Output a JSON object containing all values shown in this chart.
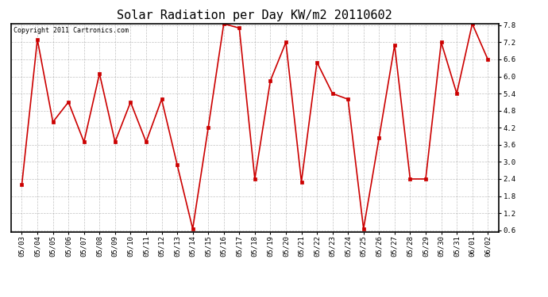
{
  "title": "Solar Radiation per Day KW/m2 20110602",
  "copyright_text": "Copyright 2011 Cartronics.com",
  "dates": [
    "05/03",
    "05/04",
    "05/05",
    "05/06",
    "05/07",
    "05/08",
    "05/09",
    "05/10",
    "05/11",
    "05/12",
    "05/13",
    "05/14",
    "05/15",
    "05/16",
    "05/17",
    "05/18",
    "05/19",
    "05/20",
    "05/21",
    "05/22",
    "05/23",
    "05/24",
    "05/25",
    "05/26",
    "05/27",
    "05/28",
    "05/29",
    "05/30",
    "05/31",
    "06/01",
    "06/02"
  ],
  "values": [
    2.2,
    7.3,
    4.4,
    5.1,
    3.7,
    6.1,
    3.7,
    5.1,
    3.7,
    5.2,
    2.9,
    0.65,
    4.2,
    7.85,
    7.7,
    2.4,
    5.85,
    7.2,
    2.3,
    6.5,
    5.4,
    5.2,
    0.65,
    3.85,
    7.1,
    2.4,
    2.4,
    7.2,
    5.4,
    7.85,
    6.6
  ],
  "line_color": "#cc0000",
  "marker": "s",
  "marker_size": 2.5,
  "background_color": "#ffffff",
  "plot_bg_color": "#ffffff",
  "grid_color": "#999999",
  "ylim_min": 0.55,
  "ylim_max": 7.85,
  "yticks": [
    0.6,
    1.2,
    1.8,
    2.4,
    3.0,
    3.6,
    4.2,
    4.8,
    5.4,
    6.0,
    6.6,
    7.2,
    7.8
  ],
  "title_fontsize": 11,
  "tick_fontsize": 6.5,
  "copyright_fontsize": 6
}
